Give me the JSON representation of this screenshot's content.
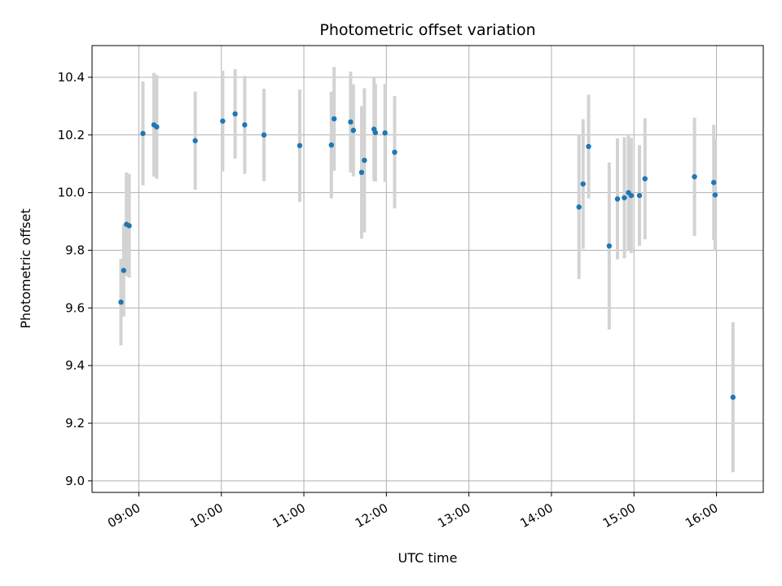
{
  "chart_data": {
    "type": "scatter",
    "title": "Photometric offset variation",
    "xlabel": "UTC time",
    "ylabel": "Photometric offset",
    "x_unit": "hour",
    "xlim": [
      "08:26",
      "16:34"
    ],
    "ylim": [
      8.96,
      10.51
    ],
    "x_ticks": [
      "09:00",
      "10:00",
      "11:00",
      "12:00",
      "13:00",
      "14:00",
      "15:00",
      "16:00"
    ],
    "y_ticks": [
      9.0,
      9.2,
      9.4,
      9.6,
      9.8,
      10.0,
      10.2,
      10.4
    ],
    "y_tick_labels": [
      "9.0",
      "9.2",
      "9.4",
      "9.6",
      "9.8",
      "10.0",
      "10.2",
      "10.4"
    ],
    "grid": true,
    "marker_color": "#1f77b4",
    "errorbar_color": "#d3d3d3",
    "points": [
      {
        "t": "08:47",
        "y": 9.62,
        "err": 0.15
      },
      {
        "t": "08:49",
        "y": 9.73,
        "err": 0.16
      },
      {
        "t": "08:51",
        "y": 9.89,
        "err": 0.18
      },
      {
        "t": "08:53",
        "y": 9.885,
        "err": 0.18
      },
      {
        "t": "09:03",
        "y": 10.205,
        "err": 0.18
      },
      {
        "t": "09:11",
        "y": 10.235,
        "err": 0.18
      },
      {
        "t": "09:13",
        "y": 10.228,
        "err": 0.18
      },
      {
        "t": "09:41",
        "y": 10.18,
        "err": 0.17
      },
      {
        "t": "10:01",
        "y": 10.248,
        "err": 0.175
      },
      {
        "t": "10:10",
        "y": 10.273,
        "err": 0.155
      },
      {
        "t": "10:17",
        "y": 10.235,
        "err": 0.17
      },
      {
        "t": "10:31",
        "y": 10.2,
        "err": 0.16
      },
      {
        "t": "10:57",
        "y": 10.163,
        "err": 0.195
      },
      {
        "t": "11:20",
        "y": 10.165,
        "err": 0.185
      },
      {
        "t": "11:22",
        "y": 10.256,
        "err": 0.18
      },
      {
        "t": "11:34",
        "y": 10.245,
        "err": 0.175
      },
      {
        "t": "11:36",
        "y": 10.216,
        "err": 0.16
      },
      {
        "t": "11:42",
        "y": 10.07,
        "err": 0.23
      },
      {
        "t": "11:44",
        "y": 10.112,
        "err": 0.25
      },
      {
        "t": "11:51",
        "y": 10.22,
        "err": 0.18
      },
      {
        "t": "11:52",
        "y": 10.208,
        "err": 0.17
      },
      {
        "t": "11:59",
        "y": 10.207,
        "err": 0.17
      },
      {
        "t": "12:06",
        "y": 10.14,
        "err": 0.195
      },
      {
        "t": "14:20",
        "y": 9.95,
        "err": 0.25
      },
      {
        "t": "14:23",
        "y": 10.03,
        "err": 0.225
      },
      {
        "t": "14:27",
        "y": 10.16,
        "err": 0.18
      },
      {
        "t": "14:42",
        "y": 9.815,
        "err": 0.29
      },
      {
        "t": "14:48",
        "y": 9.978,
        "err": 0.21
      },
      {
        "t": "14:53",
        "y": 9.982,
        "err": 0.21
      },
      {
        "t": "14:56",
        "y": 10.0,
        "err": 0.2
      },
      {
        "t": "14:58",
        "y": 9.99,
        "err": 0.2
      },
      {
        "t": "15:04",
        "y": 9.99,
        "err": 0.175
      },
      {
        "t": "15:08",
        "y": 10.048,
        "err": 0.21
      },
      {
        "t": "15:44",
        "y": 10.055,
        "err": 0.205
      },
      {
        "t": "15:58",
        "y": 10.035,
        "err": 0.2
      },
      {
        "t": "15:59",
        "y": 9.992,
        "err": 0.195
      },
      {
        "t": "16:12",
        "y": 9.29,
        "err": 0.26
      }
    ]
  }
}
